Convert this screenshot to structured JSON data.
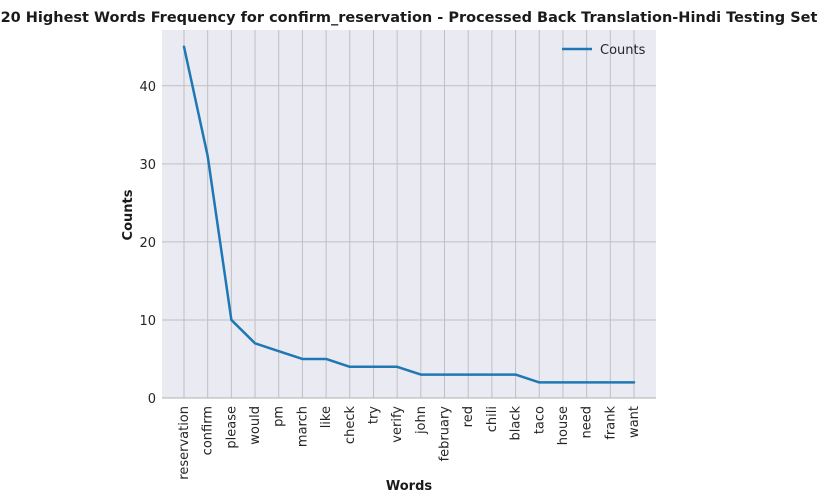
{
  "chart_data": {
    "type": "line",
    "title": "20 Highest Words Frequency for confirm_reservation - Processed Back Translation-Hindi Testing Set",
    "xlabel": "Words",
    "ylabel": "Counts",
    "categories": [
      "reservation",
      "confirm",
      "please",
      "would",
      "pm",
      "march",
      "like",
      "check",
      "try",
      "verify",
      "john",
      "february",
      "red",
      "chili",
      "black",
      "taco",
      "house",
      "need",
      "frank",
      "want"
    ],
    "series": [
      {
        "name": "Counts",
        "values": [
          45,
          31,
          10,
          7,
          6,
          5,
          5,
          4,
          4,
          4,
          3,
          3,
          3,
          3,
          3,
          2,
          2,
          2,
          2,
          2
        ],
        "color": "#1f77b4"
      }
    ],
    "ylim": [
      0,
      47.15
    ],
    "yticks": [
      0,
      10,
      20,
      30,
      40
    ],
    "grid": true,
    "legend_position": "top-right",
    "background": "#eaeaf2",
    "grid_color": "#c0c0c0"
  }
}
